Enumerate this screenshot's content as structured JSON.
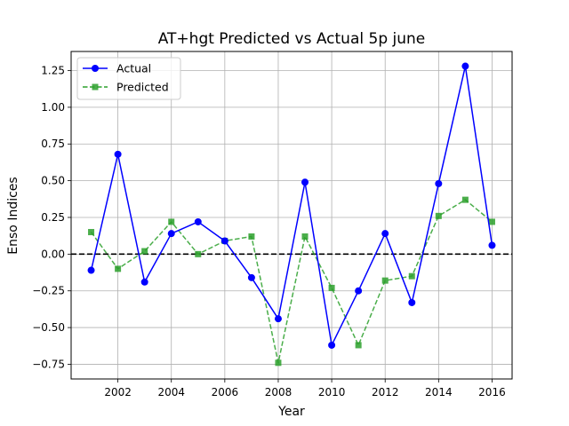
{
  "chart_data": {
    "type": "line",
    "title": "AT+hgt Predicted vs Actual 5p june",
    "xlabel": "Year",
    "ylabel": "Enso Indices",
    "xlim": [
      2000.25,
      2016.75
    ],
    "ylim": [
      -0.85,
      1.38
    ],
    "xticks": [
      2002,
      2004,
      2006,
      2008,
      2010,
      2012,
      2014,
      2016
    ],
    "yticks": [
      -0.75,
      -0.5,
      -0.25,
      0.0,
      0.25,
      0.5,
      0.75,
      1.0,
      1.25
    ],
    "ytick_labels": [
      "−0.75",
      "−0.50",
      "−0.25",
      "0.00",
      "0.25",
      "0.50",
      "0.75",
      "1.00",
      "1.25"
    ],
    "grid": true,
    "legend_position": "top-left",
    "reference_line": {
      "y": 0,
      "style": "dashed",
      "color": "#000000"
    },
    "x": [
      2001,
      2002,
      2003,
      2004,
      2005,
      2006,
      2007,
      2008,
      2009,
      2010,
      2011,
      2012,
      2013,
      2014,
      2015,
      2016
    ],
    "series": [
      {
        "name": "Actual",
        "color": "#0000ff",
        "marker": "circle",
        "line_style": "solid",
        "values": [
          -0.11,
          0.68,
          -0.19,
          0.14,
          0.22,
          0.09,
          -0.16,
          -0.44,
          0.49,
          -0.62,
          -0.25,
          0.14,
          -0.33,
          0.48,
          1.28,
          0.06
        ]
      },
      {
        "name": "Predicted",
        "color": "#2ca02c",
        "marker": "square",
        "line_style": "dashed",
        "values": [
          0.15,
          -0.1,
          0.02,
          0.22,
          0.0,
          0.09,
          0.12,
          -0.74,
          0.12,
          -0.23,
          -0.62,
          -0.18,
          -0.15,
          0.26,
          0.37,
          0.22
        ]
      }
    ]
  }
}
